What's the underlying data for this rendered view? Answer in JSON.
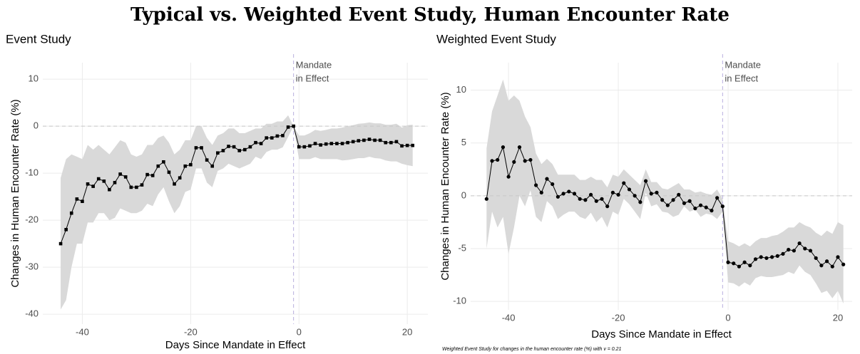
{
  "title": "Typical vs. Weighted Event Study, Human Encounter Rate",
  "chart_data": [
    {
      "type": "line",
      "title": "Event Study",
      "xlabel": "Days Since Mandate in Effect",
      "ylabel": "Changes in Human Encounter Rate (%)",
      "annotation": [
        "Mandate",
        "in Effect"
      ],
      "vline": -1,
      "hline": 0,
      "marker": "square",
      "color": "#000000",
      "band_color": "#d9d9d9",
      "grid": true,
      "xlim": [
        -47.3,
        23.8
      ],
      "ylim": [
        -42.1,
        13.5
      ],
      "xticks": [
        -40,
        -20,
        0,
        20
      ],
      "yticks": [
        -40,
        -30,
        -20,
        -10,
        0,
        10
      ],
      "x": [
        -44,
        -43,
        -42,
        -41,
        -40,
        -39,
        -38,
        -37,
        -36,
        -35,
        -34,
        -33,
        -32,
        -31,
        -30,
        -29,
        -28,
        -27,
        -26,
        -25,
        -24,
        -23,
        -22,
        -21,
        -20,
        -19,
        -18,
        -17,
        -16,
        -15,
        -14,
        -13,
        -12,
        -11,
        -10,
        -9,
        -8,
        -7,
        -6,
        -5,
        -4,
        -3,
        -2,
        -1,
        0,
        1,
        2,
        3,
        4,
        5,
        6,
        7,
        8,
        9,
        10,
        11,
        12,
        13,
        14,
        15,
        16,
        17,
        18,
        19,
        20,
        21
      ],
      "values": [
        -25,
        -22,
        -18.5,
        -15.5,
        -16,
        -12.3,
        -12.8,
        -11.2,
        -11.7,
        -13.5,
        -12,
        -10.2,
        -10.8,
        -13,
        -13,
        -12.5,
        -10.3,
        -10.5,
        -8.5,
        -7.6,
        -9.8,
        -12.3,
        -11,
        -8.5,
        -8.2,
        -4.6,
        -4.6,
        -7.2,
        -8.5,
        -5.7,
        -5.2,
        -4.3,
        -4.4,
        -5.2,
        -5,
        -4.4,
        -3.5,
        -3.7,
        -2.5,
        -2.5,
        -2.1,
        -2,
        -0.2,
        0,
        -4.4,
        -4.4,
        -4.2,
        -3.7,
        -4,
        -3.8,
        -3.7,
        -3.7,
        -3.7,
        -3.5,
        -3.3,
        -3.1,
        -3,
        -2.8,
        -3,
        -3,
        -3.5,
        -3.5,
        -3.3,
        -4.2,
        -4.1,
        -4.1
      ],
      "upper": [
        -11,
        -7,
        -6,
        -6.5,
        -7,
        -4,
        -5,
        -4,
        -5,
        -6,
        -4.5,
        -3,
        -3.5,
        -6,
        -6.5,
        -6,
        -4,
        -4,
        -2.5,
        -2,
        -3.5,
        -6,
        -5,
        -3,
        -3,
        0,
        0,
        -2.5,
        -4,
        -2,
        -1.5,
        -0.5,
        -0.5,
        -1.5,
        -1.5,
        -1,
        -0.5,
        -0.5,
        0.5,
        0.5,
        1,
        1,
        2.3,
        0,
        -2,
        -2,
        -1.5,
        -0.8,
        -1,
        -0.8,
        -0.5,
        -0.5,
        -0.3,
        0,
        0.2,
        0.5,
        0.6,
        0.8,
        0.6,
        0.6,
        0.3,
        0.3,
        0.5,
        -0.3,
        0.2,
        0.3
      ],
      "lower": [
        -39,
        -37,
        -30,
        -25,
        -25,
        -20.5,
        -20.5,
        -18.5,
        -18.5,
        -20,
        -19.5,
        -17.5,
        -18,
        -18.5,
        -18.5,
        -18,
        -16.5,
        -17,
        -14.5,
        -13,
        -16,
        -18.5,
        -17,
        -14,
        -13.5,
        -9,
        -9,
        -12,
        -13,
        -9.5,
        -9,
        -8,
        -8.5,
        -9,
        -8.5,
        -8,
        -6.5,
        -7,
        -5.5,
        -5,
        -5,
        -4.5,
        -2.3,
        0,
        -7,
        -7,
        -7,
        -6.6,
        -7,
        -7,
        -7,
        -7,
        -7.3,
        -7.2,
        -7,
        -6.8,
        -6.8,
        -6.5,
        -6.8,
        -6.9,
        -7.3,
        -7.5,
        -7.5,
        -8,
        -8.3,
        -8.5
      ]
    },
    {
      "type": "line",
      "title": "Weighted Event Study",
      "xlabel": "Days Since Mandate in Effect",
      "ylabel": "Changes in Human Encounter Rate (%)",
      "caption": "Weighted Event Study for changes in the human encounter rate (%) with v = 0.21",
      "annotation": [
        "Mandate",
        "in Effect"
      ],
      "vline": -1,
      "hline": 0,
      "marker": "circle",
      "color": "#000000",
      "band_color": "#d9d9d9",
      "grid": true,
      "xlim": [
        -46.9,
        22.6
      ],
      "ylim": [
        -10.8,
        12.6
      ],
      "xticks": [
        -40,
        -20,
        0,
        20
      ],
      "yticks": [
        -10,
        -5,
        0,
        5,
        10
      ],
      "x": [
        -44,
        -43,
        -42,
        -41,
        -40,
        -39,
        -38,
        -37,
        -36,
        -35,
        -34,
        -33,
        -32,
        -31,
        -30,
        -29,
        -28,
        -27,
        -26,
        -25,
        -24,
        -23,
        -22,
        -21,
        -20,
        -19,
        -18,
        -17,
        -16,
        -15,
        -14,
        -13,
        -12,
        -11,
        -10,
        -9,
        -8,
        -7,
        -6,
        -5,
        -4,
        -3,
        -2,
        -1,
        0,
        1,
        2,
        3,
        4,
        5,
        6,
        7,
        8,
        9,
        10,
        11,
        12,
        13,
        14,
        15,
        16,
        17,
        18,
        19,
        20,
        21
      ],
      "values": [
        -0.3,
        3.3,
        3.4,
        4.6,
        1.8,
        3.2,
        4.6,
        3.3,
        3.4,
        1.0,
        0.3,
        1.6,
        1.1,
        -0.1,
        0.2,
        0.4,
        0.2,
        -0.3,
        -0.4,
        0.1,
        -0.5,
        -0.3,
        -1.0,
        0.3,
        0.1,
        1.2,
        0.6,
        0.0,
        -0.6,
        1.4,
        0.2,
        0.3,
        -0.4,
        -0.9,
        -0.4,
        0.1,
        -0.7,
        -0.5,
        -1.2,
        -0.9,
        -1.1,
        -1.4,
        -0.2,
        -1.0,
        -6.3,
        -6.4,
        -6.7,
        -6.3,
        -6.6,
        -6.0,
        -5.8,
        -5.9,
        -5.8,
        -5.7,
        -5.5,
        -5.1,
        -5.2,
        -4.5,
        -5.0,
        -5.2,
        -5.9,
        -6.6,
        -6.2,
        -6.7,
        -5.8,
        -6.5
      ],
      "upper": [
        4.5,
        8,
        9.5,
        11,
        9,
        9.5,
        9,
        7.5,
        6.5,
        4,
        3,
        3.5,
        3,
        2,
        2,
        2,
        2,
        1.5,
        1.5,
        1.8,
        1.5,
        1.5,
        0.8,
        2,
        1.8,
        2.5,
        2,
        1.5,
        1,
        2.5,
        1.3,
        1.3,
        0.7,
        0.6,
        0.9,
        1.2,
        0.6,
        0.6,
        0.3,
        0.4,
        0.2,
        0.1,
        0.6,
        -0.3,
        -4.3,
        -4.5,
        -4.8,
        -4.5,
        -4.8,
        -4.3,
        -4,
        -4,
        -3.8,
        -3.7,
        -3.4,
        -3,
        -3,
        -2.5,
        -2.8,
        -3,
        -3.5,
        -3.8,
        -3.3,
        -3.6,
        -2.5,
        -2.8
      ],
      "lower": [
        -5,
        -1.5,
        -3,
        -2,
        -5.5,
        -3,
        0,
        -1,
        0.5,
        -2,
        -2.5,
        -0.5,
        -1,
        -2.2,
        -1.8,
        -1.5,
        -1.5,
        -2,
        -2.2,
        -1.6,
        -2.5,
        -2,
        -3,
        -1.5,
        -1.8,
        -0.3,
        -0.8,
        -1.5,
        -2.2,
        0.3,
        -1,
        -0.8,
        -1.5,
        -1.6,
        -2,
        -1.8,
        -1,
        -1.5,
        -1.3,
        -2,
        -1.7,
        -1.8,
        -2.2,
        -1.5,
        -8.2,
        -8.3,
        -8.6,
        -8.2,
        -8.5,
        -7.8,
        -7.6,
        -7.7,
        -7.7,
        -7.6,
        -7.5,
        -7.2,
        -7.4,
        -6.6,
        -7.2,
        -7.5,
        -8.3,
        -9.2,
        -9,
        -9.7,
        -9,
        -10.2
      ]
    }
  ]
}
